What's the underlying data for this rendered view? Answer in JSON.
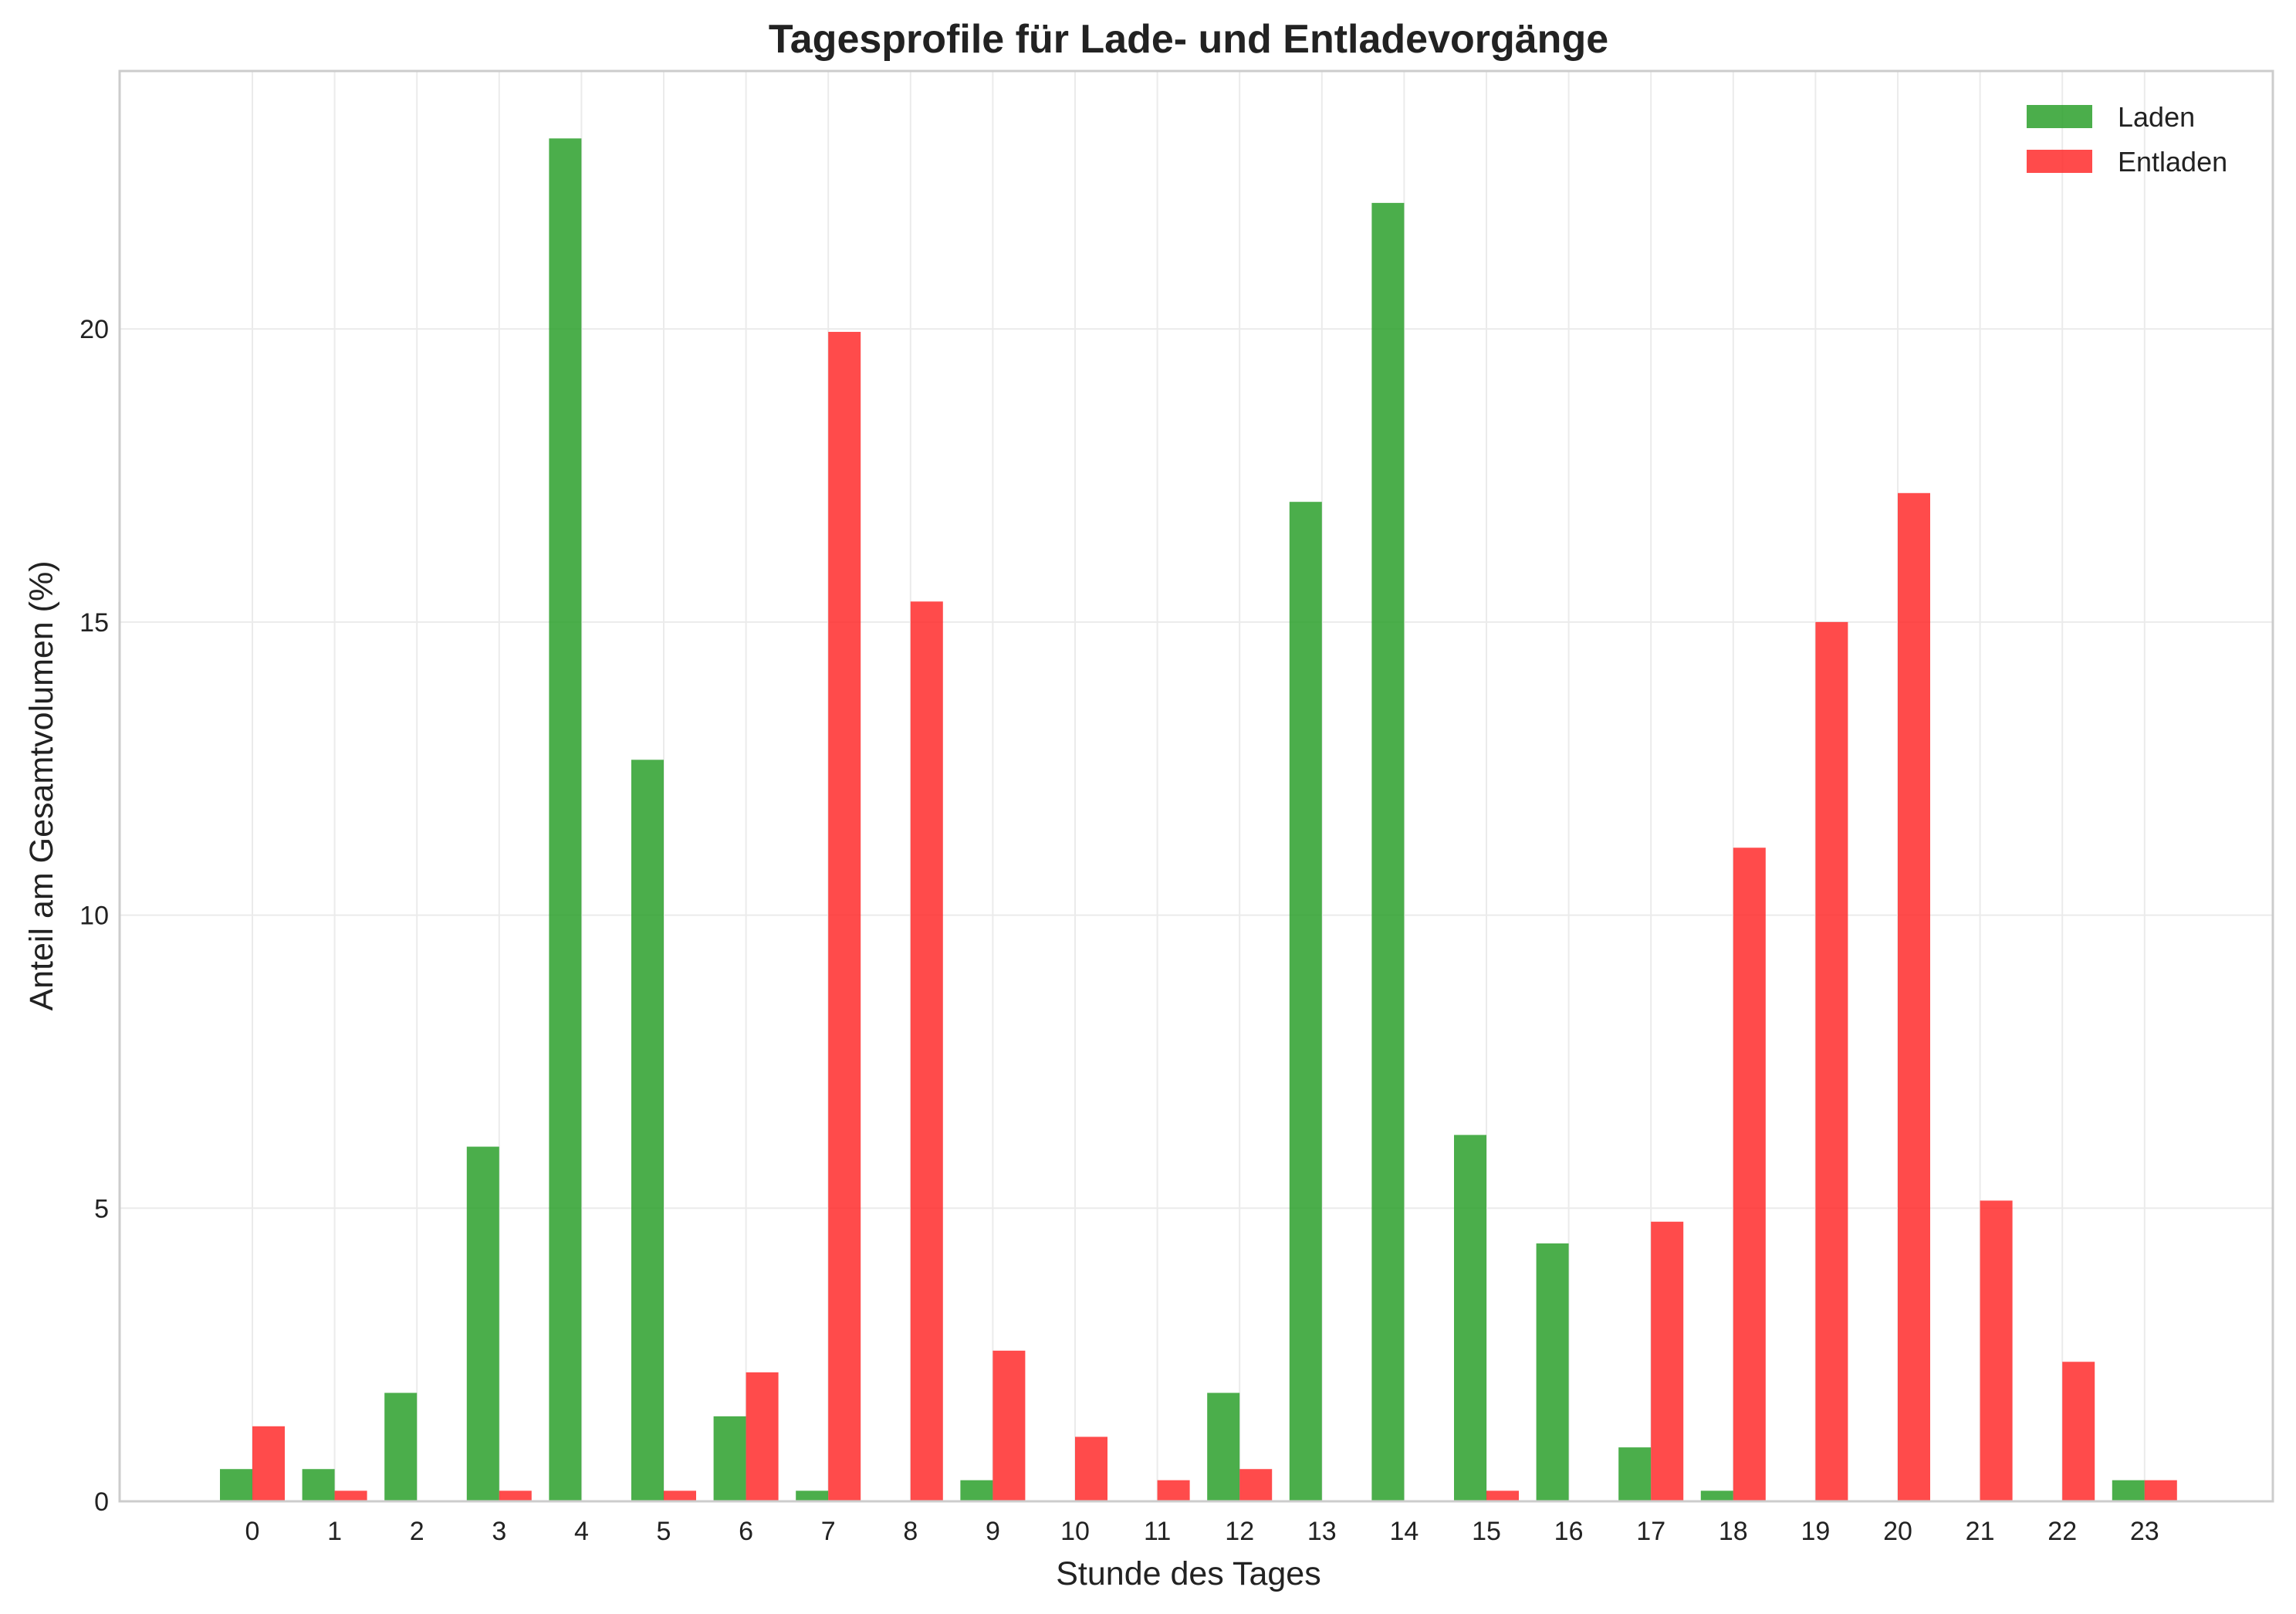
{
  "chart_data": {
    "type": "bar",
    "title": "Tagesprofile für Lade- und Entladevorgänge",
    "xlabel": "Stunde des Tages",
    "ylabel": "Anteil am Gesamtvolumen (%)",
    "categories": [
      "0",
      "1",
      "2",
      "3",
      "4",
      "5",
      "6",
      "7",
      "8",
      "9",
      "10",
      "11",
      "12",
      "13",
      "14",
      "15",
      "16",
      "17",
      "18",
      "19",
      "20",
      "21",
      "22",
      "23"
    ],
    "series": [
      {
        "name": "Laden",
        "color": "#2ca02c",
        "values": [
          0.55,
          0.55,
          1.85,
          6.05,
          23.25,
          12.65,
          1.45,
          0.18,
          0,
          0.36,
          0,
          0,
          1.85,
          17.05,
          22.15,
          6.25,
          4.4,
          0.92,
          0.18,
          0,
          0,
          0,
          0,
          0.36
        ]
      },
      {
        "name": "Entladen",
        "color": "#ff2b2b",
        "values": [
          1.28,
          0.18,
          0,
          0.18,
          0,
          0.18,
          2.2,
          19.95,
          15.35,
          2.57,
          1.1,
          0.36,
          0.55,
          0,
          0,
          0.18,
          0,
          4.77,
          11.15,
          15.0,
          17.2,
          5.13,
          2.38,
          0.36
        ]
      }
    ],
    "yticks": [
      0,
      5,
      10,
      15,
      20
    ],
    "ylim": [
      0,
      24.4
    ],
    "grid": true,
    "legend_position": "top-right"
  }
}
